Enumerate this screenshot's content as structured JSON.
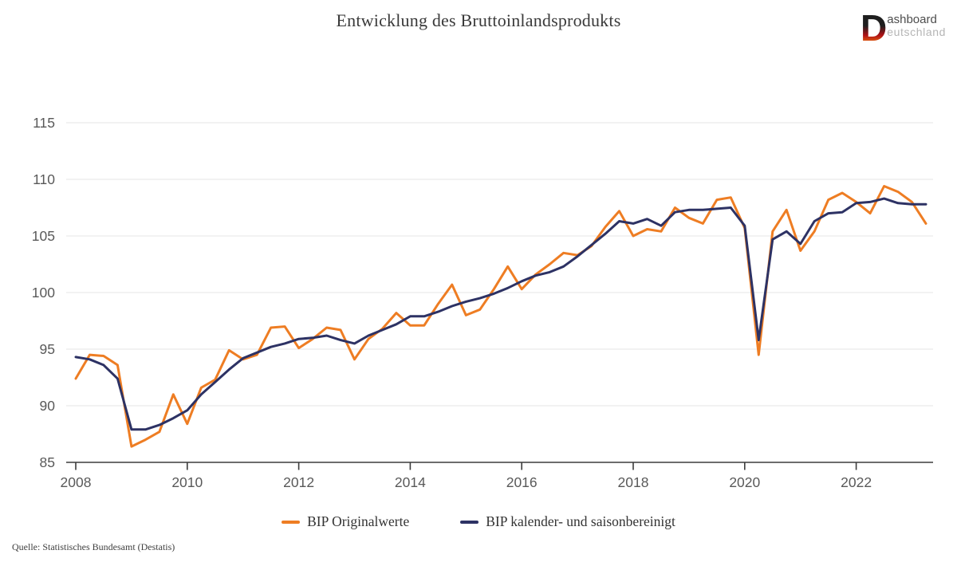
{
  "header": {
    "title": "Entwicklung des Bruttoinlandsprodukts",
    "logo": {
      "d_letter": "D",
      "line1": "ashboard",
      "line2": "eutschland",
      "d_gradient": [
        "#1f1f1f",
        "#b01116",
        "#e86a0e",
        "#f4a306"
      ]
    }
  },
  "source": "Quelle: Statistisches Bundesamt (Destatis)",
  "chart_data": {
    "type": "line",
    "title": "Entwicklung des Bruttoinlandsprodukts",
    "x_unit": "quarter",
    "x_start": "2008-Q1",
    "x_end": "2023-Q2",
    "xticks": [
      2008,
      2010,
      2012,
      2014,
      2016,
      2018,
      2020,
      2022
    ],
    "yticks": [
      85,
      90,
      95,
      100,
      105,
      110,
      115
    ],
    "ylim": [
      85,
      115
    ],
    "grid": "horizontal",
    "legend_position": "bottom",
    "axis_color": "#3c3c3c",
    "gridline_color": "#e6e6e6",
    "series": [
      {
        "name": "BIP Originalwerte",
        "color": "#ee7d23",
        "values": [
          92.4,
          94.5,
          94.4,
          93.6,
          86.4,
          87.0,
          87.7,
          91.0,
          88.4,
          91.6,
          92.3,
          94.9,
          94.1,
          94.5,
          96.9,
          97.0,
          95.1,
          95.9,
          96.9,
          96.7,
          94.1,
          95.9,
          96.8,
          98.2,
          97.1,
          97.1,
          99.0,
          100.7,
          98.0,
          98.5,
          100.3,
          102.3,
          100.3,
          101.6,
          102.5,
          103.5,
          103.3,
          104.1,
          105.8,
          107.2,
          105.0,
          105.6,
          105.4,
          107.5,
          106.6,
          106.1,
          108.2,
          108.4,
          105.7,
          94.5,
          105.4,
          107.3,
          103.7,
          105.4,
          108.2,
          108.8,
          108.0,
          107.0,
          109.4,
          108.9,
          108.0,
          106.1
        ]
      },
      {
        "name": "BIP kalender- und saisonbereinigt",
        "color": "#2d3264",
        "values": [
          94.3,
          94.1,
          93.6,
          92.4,
          87.9,
          87.9,
          88.3,
          88.9,
          89.6,
          91.0,
          92.1,
          93.2,
          94.2,
          94.7,
          95.2,
          95.5,
          95.9,
          96.0,
          96.2,
          95.8,
          95.5,
          96.2,
          96.7,
          97.2,
          97.9,
          97.9,
          98.3,
          98.8,
          99.2,
          99.5,
          99.9,
          100.4,
          101.0,
          101.5,
          101.8,
          102.3,
          103.2,
          104.2,
          105.2,
          106.3,
          106.1,
          106.5,
          105.9,
          107.1,
          107.3,
          107.3,
          107.4,
          107.5,
          105.9,
          95.8,
          104.7,
          105.4,
          104.3,
          106.3,
          107.0,
          107.1,
          107.9,
          108.0,
          108.3,
          107.9,
          107.8,
          107.8
        ]
      }
    ]
  }
}
